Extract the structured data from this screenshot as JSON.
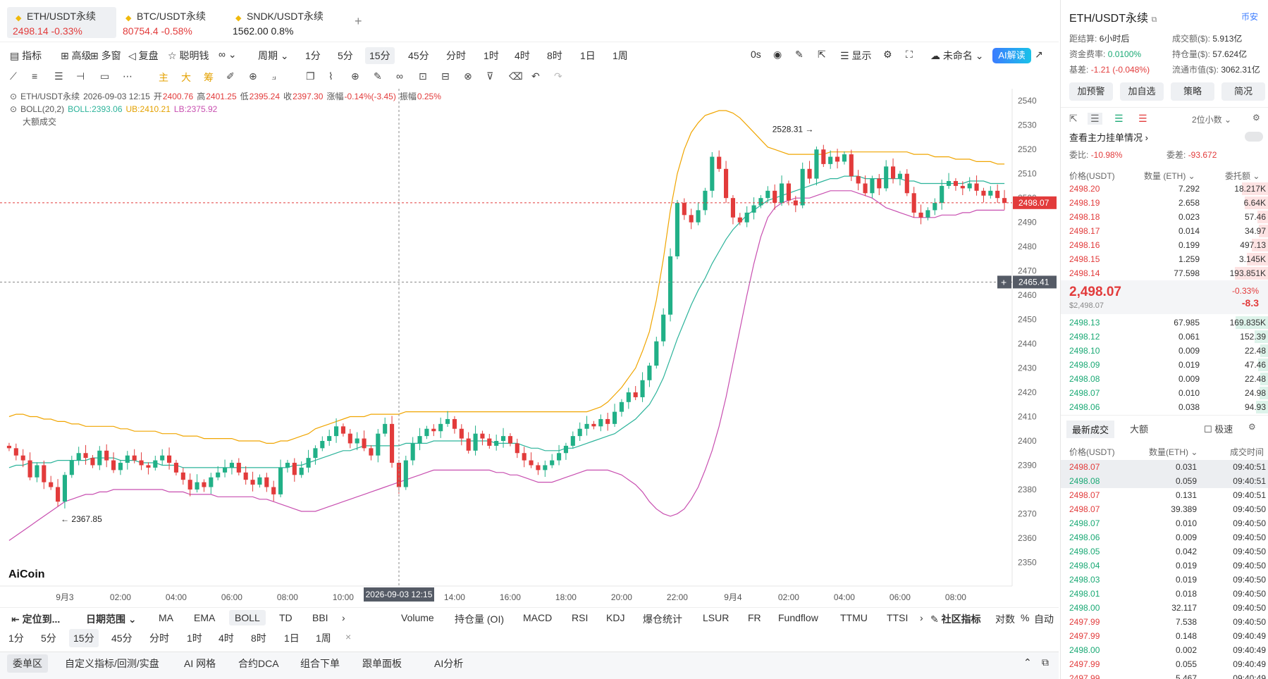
{
  "tabs": [
    {
      "name": "ETH/USDT永续",
      "price": "2498.14",
      "change": "-0.33%",
      "dir": "down"
    },
    {
      "name": "BTC/USDT永续",
      "price": "80754.4",
      "change": "-0.58%",
      "dir": "down"
    },
    {
      "name": "SNDK/USDT永续",
      "price": "1562.00",
      "change": "0.8%",
      "dir": "flat"
    }
  ],
  "toolbar": {
    "indicator": "指标",
    "advanced": "高级",
    "multi": "多窗",
    "replay": "复盘",
    "smart": "聪明钱",
    "period": "周期",
    "tfs": [
      "1分",
      "5分",
      "15分",
      "45分",
      "分时",
      "1时",
      "4时",
      "8时",
      "1日",
      "1周"
    ],
    "countdown": "0s",
    "display": "显示",
    "unnamed": "未命名",
    "ai": "AI解读"
  },
  "drawtools": {
    "main": "主",
    "big": "大",
    "chips": "筹"
  },
  "legend": {
    "symbol": "ETH/USDT永续",
    "time": "2026-09-03 12:15",
    "open_l": "开",
    "open": "2400.76",
    "high_l": "高",
    "high": "2401.25",
    "low_l": "低",
    "low": "2395.24",
    "close_l": "收",
    "close": "2397.30",
    "chg_l": "涨幅",
    "chg": "-0.14%(-3.45)",
    "amp_l": "振幅",
    "amp": "0.25%",
    "boll": "BOLL(20,2)",
    "boll_mid": "BOLL:2393.06",
    "boll_ub": "UB:2410.21",
    "boll_lb": "LB:2375.92",
    "bigtrade": "大额成交"
  },
  "chart_data": {
    "type": "candlestick",
    "ylim": [
      2342,
      2545
    ],
    "yticks": [
      2540,
      2530,
      2520,
      2510,
      2500,
      2490,
      2480,
      2470,
      2460,
      2450,
      2440,
      2430,
      2420,
      2410,
      2400,
      2390,
      2380,
      2370,
      2360,
      2350
    ],
    "xticks": [
      "9月3",
      "02:00",
      "04:00",
      "06:00",
      "08:00",
      "10:00",
      "12:00",
      "14:00",
      "16:00",
      "18:00",
      "20:00",
      "22:00",
      "9月4",
      "02:00",
      "04:00",
      "06:00",
      "08:00"
    ],
    "crosshair_time": "2026-09-03 12:15",
    "last_price": "2498.07",
    "crosshair_price": "2465.41",
    "hi_label": "2528.31",
    "lo_label": "2367.85",
    "closes": [
      2397,
      2394,
      2392,
      2385,
      2390,
      2383,
      2381,
      2375,
      2386,
      2392,
      2395,
      2393,
      2390,
      2396,
      2392,
      2388,
      2391,
      2394,
      2392,
      2390,
      2389,
      2392,
      2394,
      2391,
      2387,
      2384,
      2380,
      2383,
      2381,
      2385,
      2387,
      2389,
      2391,
      2387,
      2384,
      2382,
      2385,
      2381,
      2378,
      2389,
      2391,
      2386,
      2389,
      2393,
      2397,
      2400,
      2402,
      2406,
      2403,
      2399,
      2401,
      2397,
      2394,
      2403,
      2407,
      2391,
      2381,
      2392,
      2399,
      2402,
      2405,
      2404,
      2407,
      2409,
      2405,
      2401,
      2396,
      2403,
      2401,
      2398,
      2400,
      2402,
      2399,
      2395,
      2392,
      2390,
      2388,
      2390,
      2392,
      2395,
      2398,
      2402,
      2405,
      2407,
      2406,
      2409,
      2407,
      2412,
      2416,
      2420,
      2418,
      2425,
      2431,
      2441,
      2452,
      2476,
      2498,
      2493,
      2490,
      2495,
      2503,
      2517,
      2512,
      2500,
      2492,
      2490,
      2494,
      2497,
      2500,
      2503,
      2498,
      2506,
      2499,
      2497,
      2512,
      2508,
      2520,
      2514,
      2517,
      2515,
      2518,
      2509,
      2506,
      2502,
      2508,
      2504,
      2513,
      2508,
      2510,
      2502,
      2494,
      2492,
      2495,
      2498,
      2505,
      2507,
      2505,
      2504,
      2506,
      2503,
      2501,
      2503,
      2500,
      2498
    ],
    "boll_mid": [
      2389,
      2390,
      2390,
      2391,
      2391,
      2391,
      2391,
      2392,
      2392,
      2392,
      2392,
      2392,
      2393,
      2393,
      2393,
      2393,
      2392,
      2392,
      2392,
      2391,
      2391,
      2391,
      2390,
      2390,
      2390,
      2389,
      2389,
      2389,
      2389,
      2389,
      2389,
      2389,
      2389,
      2389,
      2389,
      2389,
      2389,
      2389,
      2389,
      2389,
      2389,
      2390,
      2390,
      2391,
      2392,
      2393,
      2394,
      2395,
      2396,
      2396,
      2397,
      2398,
      2398,
      2398,
      2398,
      2398,
      2398,
      2399,
      2399,
      2399,
      2399,
      2400,
      2400,
      2400,
      2400,
      2400,
      2400,
      2400,
      2400,
      2400,
      2399,
      2399,
      2399,
      2399,
      2398,
      2397,
      2397,
      2396,
      2396,
      2396,
      2397,
      2397,
      2398,
      2399,
      2400,
      2401,
      2402,
      2403,
      2405,
      2407,
      2409,
      2412,
      2415,
      2420,
      2426,
      2434,
      2442,
      2449,
      2456,
      2462,
      2467,
      2473,
      2478,
      2483,
      2487,
      2490,
      2493,
      2495,
      2497,
      2499,
      2500,
      2501,
      2502,
      2503,
      2504,
      2505,
      2506,
      2507,
      2508,
      2508,
      2509,
      2509,
      2509,
      2508,
      2508,
      2508,
      2508,
      2508,
      2508,
      2507,
      2507,
      2506,
      2506,
      2506,
      2506,
      2506,
      2506,
      2506,
      2507,
      2507,
      2507,
      2506,
      2506,
      2506
    ],
    "boll_ub": [
      2410,
      2411,
      2411,
      2410,
      2410,
      2409,
      2409,
      2408,
      2408,
      2407,
      2407,
      2406,
      2406,
      2406,
      2406,
      2406,
      2405,
      2405,
      2404,
      2404,
      2404,
      2404,
      2403,
      2403,
      2403,
      2402,
      2402,
      2402,
      2401,
      2401,
      2401,
      2401,
      2401,
      2400,
      2400,
      2400,
      2400,
      2399,
      2399,
      2400,
      2400,
      2401,
      2402,
      2403,
      2405,
      2406,
      2407,
      2408,
      2409,
      2410,
      2410,
      2410,
      2411,
      2411,
      2411,
      2411,
      2411,
      2412,
      2412,
      2412,
      2412,
      2412,
      2412,
      2412,
      2412,
      2412,
      2412,
      2412,
      2412,
      2412,
      2412,
      2412,
      2412,
      2412,
      2412,
      2412,
      2412,
      2412,
      2412,
      2412,
      2412,
      2412,
      2412,
      2412,
      2413,
      2414,
      2416,
      2419,
      2422,
      2426,
      2430,
      2437,
      2445,
      2458,
      2475,
      2495,
      2510,
      2520,
      2527,
      2531,
      2534,
      2535,
      2536,
      2536,
      2535,
      2533,
      2530,
      2527,
      2524,
      2521,
      2520,
      2519,
      2518,
      2518,
      2518,
      2518,
      2518,
      2518,
      2519,
      2519,
      2519,
      2519,
      2519,
      2519,
      2519,
      2519,
      2519,
      2519,
      2519,
      2519,
      2518,
      2518,
      2518,
      2517,
      2517,
      2517,
      2516,
      2516,
      2516,
      2515,
      2515,
      2515,
      2514,
      2514
    ],
    "boll_lb": [
      2359,
      2361,
      2363,
      2365,
      2367,
      2369,
      2371,
      2373,
      2375,
      2376,
      2377,
      2378,
      2378,
      2379,
      2379,
      2380,
      2380,
      2380,
      2380,
      2380,
      2380,
      2380,
      2380,
      2379,
      2379,
      2379,
      2378,
      2378,
      2378,
      2378,
      2377,
      2377,
      2377,
      2377,
      2377,
      2377,
      2376,
      2376,
      2375,
      2374,
      2373,
      2372,
      2371,
      2371,
      2371,
      2372,
      2373,
      2374,
      2375,
      2376,
      2377,
      2378,
      2379,
      2380,
      2381,
      2382,
      2383,
      2384,
      2385,
      2386,
      2387,
      2388,
      2388,
      2388,
      2388,
      2388,
      2388,
      2388,
      2388,
      2388,
      2387,
      2387,
      2386,
      2386,
      2385,
      2384,
      2383,
      2383,
      2383,
      2384,
      2385,
      2386,
      2387,
      2388,
      2388,
      2388,
      2388,
      2387,
      2386,
      2384,
      2382,
      2379,
      2375,
      2372,
      2370,
      2369,
      2370,
      2372,
      2376,
      2381,
      2388,
      2396,
      2406,
      2418,
      2432,
      2446,
      2460,
      2473,
      2484,
      2492,
      2496,
      2498,
      2499,
      2500,
      2500,
      2500,
      2501,
      2502,
      2503,
      2503,
      2503,
      2503,
      2502,
      2501,
      2500,
      2498,
      2496,
      2495,
      2494,
      2493,
      2492,
      2492,
      2492,
      2492,
      2493,
      2493,
      2493,
      2494,
      2494,
      2495,
      2495,
      2495,
      2495,
      2495
    ]
  },
  "indicators": {
    "locate": "定位到...",
    "daterange": "日期范围",
    "main": [
      "MA",
      "EMA",
      "BOLL",
      "TD",
      "BBI"
    ],
    "sub": [
      "Volume",
      "持仓量 (OI)",
      "MACD",
      "RSI",
      "KDJ",
      "爆仓统计",
      "LSUR",
      "FR",
      "Fundflow",
      "TTMU",
      "TTSI"
    ],
    "community": "社区指标",
    "log": "对数",
    "pct": "%",
    "auto": "自动"
  },
  "tf2": [
    "1分",
    "5分",
    "15分",
    "45分",
    "分时",
    "1时",
    "4时",
    "8时",
    "1日",
    "1周"
  ],
  "bottom": [
    "委单区",
    "自定义指标/回测/实盘",
    "AI 网格",
    "合约DCA",
    "组合下单",
    "跟单面板",
    "AI分析"
  ],
  "side": {
    "title": "ETH/USDT永续",
    "exchange": "币安",
    "settle_l": "距结算:",
    "settle": "6小时后",
    "turnover_l": "成交额($):",
    "turnover": "5.913亿",
    "funding_l": "资金费率:",
    "funding": "0.0100%",
    "oi_l": "持仓量($):",
    "oi": "57.624亿",
    "basis_l": "基差:",
    "basis": "-1.21 (-0.048%)",
    "mcap_l": "流通市值($):",
    "mcap": "3062.31亿",
    "buttons": [
      "加预警",
      "加自选",
      "策略",
      "简况"
    ],
    "decimals": "2位小数",
    "whale": "查看主力挂单情况",
    "ratio_l": "委比:",
    "ratio": "-10.98%",
    "diff_l": "委差:",
    "diff": "-93.672",
    "ob_cols": [
      "价格(USDT)",
      "数量 (ETH)",
      "委托额"
    ],
    "asks": [
      [
        "2498.20",
        "7.292",
        "18.217K"
      ],
      [
        "2498.19",
        "2.658",
        "6.64K"
      ],
      [
        "2498.18",
        "0.023",
        "57.46"
      ],
      [
        "2498.17",
        "0.014",
        "34.97"
      ],
      [
        "2498.16",
        "0.199",
        "497.13"
      ],
      [
        "2498.15",
        "1.259",
        "3.145K"
      ],
      [
        "2498.14",
        "77.598",
        "193.851K"
      ]
    ],
    "mid_price": "2,498.07",
    "mid_usd": "$2,498.07",
    "mid_pct": "-0.33%",
    "mid_chg": "-8.3",
    "bids": [
      [
        "2498.13",
        "67.985",
        "169.835K"
      ],
      [
        "2498.12",
        "0.061",
        "152.39"
      ],
      [
        "2498.10",
        "0.009",
        "22.48"
      ],
      [
        "2498.09",
        "0.019",
        "47.46"
      ],
      [
        "2498.08",
        "0.009",
        "22.48"
      ],
      [
        "2498.07",
        "0.010",
        "24.98"
      ],
      [
        "2498.06",
        "0.038",
        "94.93"
      ]
    ],
    "trades_tab": "最新成交",
    "bigtab": "大额",
    "fast": "极速",
    "tr_cols": [
      "价格(USDT)",
      "数量(ETH)",
      "成交时间"
    ],
    "trades": [
      [
        "2498.07",
        "0.031",
        "09:40:51",
        "r"
      ],
      [
        "2498.08",
        "0.059",
        "09:40:51",
        "g"
      ],
      [
        "2498.07",
        "0.131",
        "09:40:51",
        "r"
      ],
      [
        "2498.07",
        "39.389",
        "09:40:50",
        "r"
      ],
      [
        "2498.07",
        "0.010",
        "09:40:50",
        "g"
      ],
      [
        "2498.06",
        "0.009",
        "09:40:50",
        "g"
      ],
      [
        "2498.05",
        "0.042",
        "09:40:50",
        "g"
      ],
      [
        "2498.04",
        "0.019",
        "09:40:50",
        "g"
      ],
      [
        "2498.03",
        "0.019",
        "09:40:50",
        "g"
      ],
      [
        "2498.01",
        "0.018",
        "09:40:50",
        "g"
      ],
      [
        "2498.00",
        "32.117",
        "09:40:50",
        "g"
      ],
      [
        "2497.99",
        "7.538",
        "09:40:50",
        "r"
      ],
      [
        "2497.99",
        "0.148",
        "09:40:49",
        "r"
      ],
      [
        "2498.00",
        "0.002",
        "09:40:49",
        "g"
      ],
      [
        "2497.99",
        "0.055",
        "09:40:49",
        "r"
      ],
      [
        "2497.99",
        "5.467",
        "09:40:49",
        "r"
      ]
    ]
  },
  "logo": "AiCoin"
}
